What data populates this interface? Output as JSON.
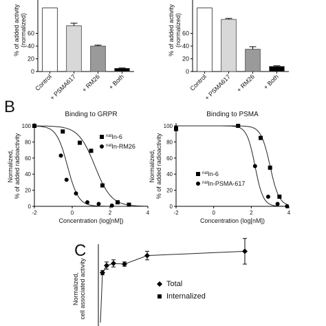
{
  "panel_labels": {
    "b": "B",
    "c": "C"
  },
  "chart_data": [
    {
      "id": "a1",
      "type": "bar",
      "ylabel_line1": "% of added activity",
      "ylabel_line2": "(normalized)",
      "categories": [
        "Control",
        "+ PSMA617",
        "+ RM26",
        "+ Both"
      ],
      "values": [
        100,
        72,
        40,
        5
      ],
      "errors": [
        0,
        4,
        1.5,
        0.6
      ],
      "fills": [
        "#ffffff",
        "#d8d8d8",
        "#9a9a9a",
        "#000000"
      ],
      "ylim": [
        0,
        100
      ],
      "yticks": [
        "0",
        "20",
        "40",
        "60"
      ]
    },
    {
      "id": "a2",
      "type": "bar",
      "ylabel_line1": "% of added activity",
      "ylabel_line2": "(normalized)",
      "categories": [
        "Control",
        "+ PSMA617",
        "+ RM26",
        "+ Both"
      ],
      "values": [
        100,
        82,
        35,
        8
      ],
      "errors": [
        0,
        1.5,
        4,
        1
      ],
      "fills": [
        "#ffffff",
        "#d8d8d8",
        "#9a9a9a",
        "#000000"
      ],
      "ylim": [
        0,
        100
      ],
      "yticks": [
        "0",
        "20",
        "40",
        "60"
      ]
    },
    {
      "id": "b1",
      "type": "line",
      "title": "Binding to GRPR",
      "xlabel": "Concentration (log[nM])",
      "ylabel_line1": "Normalized,",
      "ylabel_line2": "% of added radioactivity",
      "xlim": [
        -2,
        4
      ],
      "ylim": [
        0,
        100
      ],
      "xticks": [
        "-2",
        "0",
        "2",
        "4"
      ],
      "yticks": [
        "0",
        "20",
        "40",
        "60",
        "80",
        "100"
      ],
      "series": [
        {
          "name_sup": "nat",
          "name": "In-6",
          "marker": "square",
          "ic50": 1.2,
          "hill": 1.0,
          "x": [
            -2,
            -0.5,
            0.4,
            1.0,
            1.6,
            2.4,
            3.0
          ],
          "y": [
            100,
            93,
            79,
            69,
            26,
            5,
            2
          ]
        },
        {
          "name_sup": "nat",
          "name": "In-RM26",
          "marker": "circle",
          "ic50": -0.25,
          "hill": 1.5,
          "x": [
            -2,
            -0.6,
            -0.3,
            0.2,
            0.8,
            1.4,
            2.1
          ],
          "y": [
            100,
            63,
            33,
            16,
            5,
            3,
            1
          ]
        }
      ]
    },
    {
      "id": "b2",
      "type": "line",
      "title": "Binding to PSMA",
      "xlabel": "Concentration (log[nM])",
      "ylabel_line1": "Normalized,",
      "ylabel_line2": "% of added radioactivity",
      "xlim": [
        -2,
        4
      ],
      "ylim": [
        0,
        100
      ],
      "xticks": [
        "-2",
        "0",
        "2",
        "4"
      ],
      "yticks": [
        "0",
        "20",
        "40",
        "60",
        "80",
        "100"
      ],
      "series": [
        {
          "name_sup": "nat",
          "name": "In-6",
          "marker": "square",
          "ic50": 3.0,
          "hill": 1.8,
          "x": [
            -2,
            1.3,
            2.5,
            3.0,
            3.5
          ],
          "y": [
            96,
            100,
            85,
            48,
            12
          ]
        },
        {
          "name_sup": "nat",
          "name": "In-PSMA-617",
          "marker": "circle",
          "ic50": 2.2,
          "hill": 2.0,
          "x": [
            -2,
            2.2,
            2.9,
            3.4,
            3.9
          ],
          "y": [
            98,
            50,
            12,
            3,
            0
          ]
        }
      ]
    },
    {
      "id": "c",
      "type": "line",
      "ylabel_line1": "Normalized,",
      "ylabel_line2": "cell associated activity",
      "ylim": [
        0,
        110
      ],
      "x": [
        0,
        0.5,
        1,
        2,
        4,
        8,
        24
      ],
      "series": [
        {
          "name": "Total",
          "marker": "diamond",
          "y": [
            0,
            70,
            80,
            83,
            82,
            94,
            100
          ],
          "errors": [
            0,
            3,
            5,
            5,
            3,
            6,
            18
          ]
        },
        {
          "name": "Internalized",
          "marker": "square",
          "y": [
            0,
            1,
            1,
            1,
            1,
            1,
            1
          ],
          "errors": [
            0,
            0,
            0,
            0,
            0,
            0,
            0
          ]
        }
      ]
    }
  ]
}
